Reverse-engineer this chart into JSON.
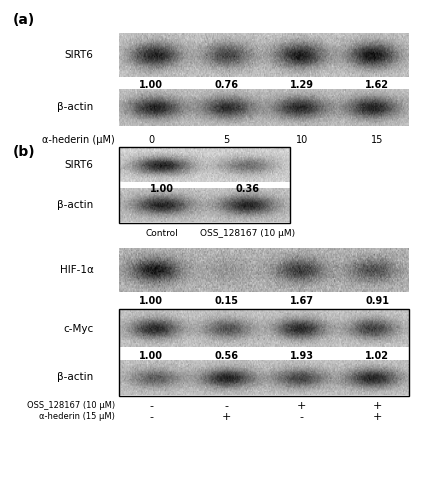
{
  "panel_a_label": "(a)",
  "panel_b_label": "(b)",
  "panel_a": {
    "sirt6_intensities": [
      0.88,
      0.68,
      0.91,
      0.96
    ],
    "bactin_intensities": [
      0.88,
      0.82,
      0.85,
      0.88
    ],
    "quantifications": [
      "1.00",
      "0.76",
      "1.29",
      "1.62"
    ],
    "x_label": "α-hederin (μM)",
    "x_ticks": [
      "0",
      "5",
      "10",
      "15"
    ]
  },
  "panel_b_top": {
    "sirt6_intensities": [
      0.9,
      0.5
    ],
    "bactin_intensities": [
      0.88,
      0.88
    ],
    "quantifications": [
      "1.00",
      "0.36"
    ],
    "x_ticks": [
      "Control",
      "OSS_128167 (10 μM)"
    ]
  },
  "panel_b_bottom": {
    "hif_intensities": [
      0.92,
      0.18,
      0.72,
      0.6
    ],
    "cmyc_intensities": [
      0.85,
      0.62,
      0.86,
      0.72
    ],
    "bactin_intensities": [
      0.55,
      0.88,
      0.7,
      0.88
    ],
    "quantifications_hif": [
      "1.00",
      "0.15",
      "1.67",
      "0.91"
    ],
    "quantifications_cmyc": [
      "1.00",
      "0.56",
      "1.93",
      "1.02"
    ],
    "x_label_1": "OSS_128167 (10 μM)",
    "x_label_2": "α-hederin (15 μM)",
    "x_ticks_1": [
      "-",
      "-",
      "+",
      "+"
    ],
    "x_ticks_2": [
      "-",
      "+",
      "-",
      "+"
    ]
  }
}
